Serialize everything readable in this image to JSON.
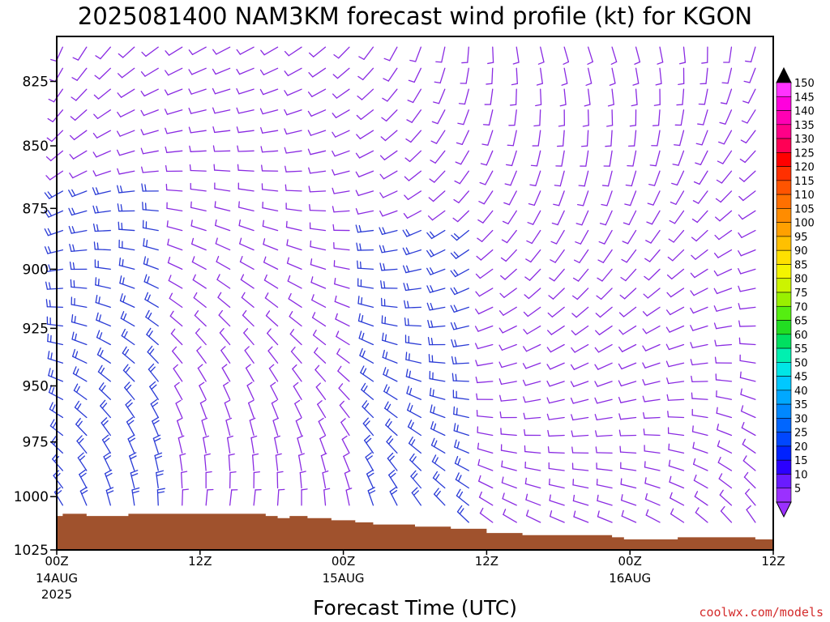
{
  "chart_data": {
    "type": "wind-barb-profile",
    "title": "2025081400 NAM3KM forecast wind profile (kt) for KGON",
    "xlabel": "Forecast Time (UTC)",
    "ylabel": "",
    "x_range_hours": [
      0,
      60
    ],
    "y_range_hpa": [
      808,
      1025
    ],
    "y_scale": "log-pressure",
    "y_ticks": [
      825,
      850,
      875,
      900,
      925,
      950,
      975,
      1000,
      1025
    ],
    "x_ticks": [
      {
        "hour": 0,
        "label": "00Z",
        "sub": "14AUG",
        "sub2": "2025"
      },
      {
        "hour": 12,
        "label": "12Z",
        "sub": "",
        "sub2": ""
      },
      {
        "hour": 24,
        "label": "00Z",
        "sub": "15AUG",
        "sub2": ""
      },
      {
        "hour": 36,
        "label": "12Z",
        "sub": "",
        "sub2": ""
      },
      {
        "hour": 48,
        "label": "00Z",
        "sub": "16AUG",
        "sub2": ""
      },
      {
        "hour": 60,
        "label": "12Z",
        "sub": "",
        "sub2": ""
      }
    ],
    "surface_pressure": {
      "hours": [
        0,
        0.5,
        2.5,
        4.5,
        6,
        11.5,
        17.5,
        18.5,
        19.5,
        21,
        23,
        25,
        26.5,
        30,
        33,
        36,
        39,
        43,
        45,
        46.5,
        47.5,
        48.5,
        50,
        51.5,
        52,
        57,
        58.5,
        60
      ],
      "values": [
        1009,
        1008,
        1009,
        1009,
        1008,
        1008,
        1009,
        1010,
        1009,
        1010,
        1011,
        1012,
        1013,
        1014,
        1015,
        1017,
        1018,
        1018,
        1018,
        1019,
        1020,
        1020,
        1020,
        1020,
        1019,
        1019,
        1020,
        1021
      ]
    },
    "surface_color": "#a0522d",
    "barb_field": {
      "hour_step": 2,
      "level_step_hpa": 8,
      "color_low": "#8a2be2",
      "color_mid": "#2a3bd6",
      "dominant_speed_kt": 5
    },
    "colorbar": {
      "levels": [
        5,
        10,
        15,
        20,
        25,
        30,
        35,
        40,
        45,
        50,
        55,
        60,
        65,
        70,
        75,
        80,
        85,
        90,
        95,
        100,
        105,
        110,
        115,
        120,
        125,
        130,
        135,
        140,
        145,
        150
      ],
      "colors": [
        "#9b30ff",
        "#6a1bff",
        "#2b00ff",
        "#0022ff",
        "#0047ff",
        "#0066ff",
        "#0088ff",
        "#00a8ff",
        "#00c8ff",
        "#00e6e6",
        "#00f0b0",
        "#00e060",
        "#22dd22",
        "#55ee11",
        "#99f000",
        "#ccf400",
        "#f4f400",
        "#ffe000",
        "#ffc000",
        "#ffa000",
        "#ff8c00",
        "#ff7000",
        "#ff5400",
        "#ff3000",
        "#ff0000",
        "#ff0055",
        "#ff0088",
        "#ff00b4",
        "#ff00dd",
        "#ff33ff"
      ],
      "top_color": "#000000"
    }
  },
  "credit": "coolwx.com/models"
}
